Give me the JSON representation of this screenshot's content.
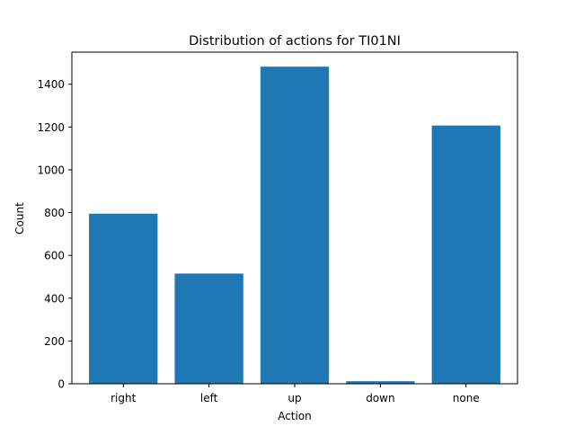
{
  "chart_data": {
    "type": "bar",
    "title": "Distribution of actions for TI01NI",
    "xlabel": "Action",
    "ylabel": "Count",
    "categories": [
      "right",
      "left",
      "up",
      "down",
      "none"
    ],
    "values": [
      795,
      515,
      1482,
      12,
      1207
    ],
    "ylim": [
      0,
      1500
    ],
    "yticks": [
      0,
      200,
      400,
      600,
      800,
      1000,
      1200,
      1400
    ],
    "grid": false,
    "bar_color": "#1f77b4"
  }
}
